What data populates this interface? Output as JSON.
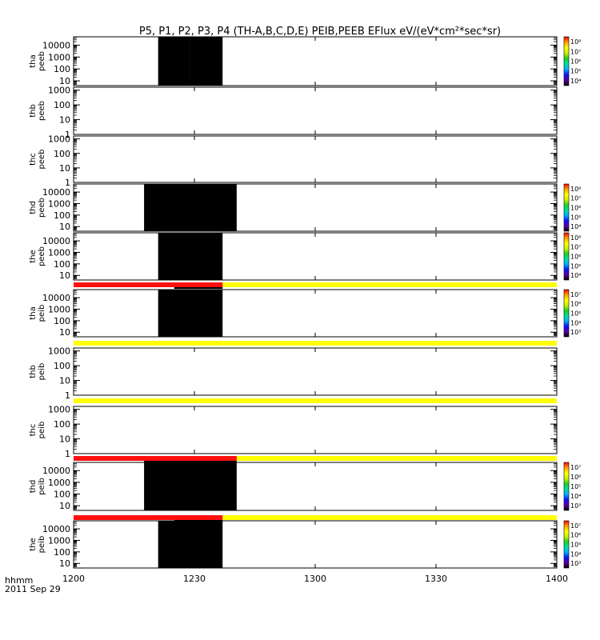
{
  "title": "P5, P1, P2, P3, P4 (TH-A,B,C,D,E) PEIB,PEEB EFlux eV/(eV*cm²*sec*sr)",
  "time_axis": {
    "label_line1": "hhmm",
    "label_line2": "2011 Sep 29",
    "ticks": [
      "1200",
      "1230",
      "1300",
      "1330",
      "1400"
    ]
  },
  "chart_data": {
    "type": "heatmap",
    "title": "P5, P1, P2, P3, P4 (TH-A,B,C,D,E) PEIB,PEEB EFlux eV/(eV*cm²*sec*sr)",
    "x_axis": {
      "unit": "hhmm",
      "date": "2011 Sep 29",
      "range_minutes": [
        0,
        120
      ],
      "tick_labels": [
        "1200",
        "1230",
        "1300",
        "1330",
        "1400"
      ]
    },
    "panels": [
      {
        "probe": "tha",
        "product": "peeb",
        "yticks": [
          "10",
          "100",
          "1000",
          "10000"
        ],
        "yrange_log": [
          0.6,
          4.7
        ],
        "colorbar": [
          "10⁴",
          "10⁵",
          "10⁶",
          "10⁷",
          "10⁸"
        ],
        "data_minutes": [
          [
            21,
            29
          ],
          [
            29,
            37
          ]
        ],
        "fill": [
          [
            "#6ee34a",
            "#9ee03a"
          ],
          [
            "#4bd12e",
            "#7cdd35"
          ]
        ]
      },
      {
        "probe": "thb",
        "product": "peeb",
        "yticks": [
          "1",
          "10",
          "100",
          "1000"
        ],
        "yrange_log": [
          0,
          3.2
        ]
      },
      {
        "probe": "thc",
        "product": "peeb",
        "yticks": [
          "1",
          "10",
          "100",
          "1000"
        ],
        "yrange_log": [
          0,
          3.2
        ]
      },
      {
        "probe": "thd",
        "product": "peeb",
        "yticks": [
          "10",
          "100",
          "1000",
          "10000"
        ],
        "yrange_log": [
          0.6,
          4.7
        ],
        "colorbar": [
          "10⁴",
          "10⁵",
          "10⁶",
          "10⁷",
          "10⁸"
        ],
        "data_minutes": [
          [
            17.5,
            40.5
          ]
        ],
        "fill": [
          [
            "#ffe838",
            "#d9ed2a"
          ],
          [
            "#ffd92e",
            "#47e625"
          ]
        ]
      },
      {
        "probe": "the",
        "product": "peeb",
        "yticks": [
          "10",
          "100",
          "1000",
          "10000"
        ],
        "yrange_log": [
          0.6,
          4.7
        ],
        "colorbar": [
          "10⁴",
          "10⁵",
          "10⁶",
          "10⁷",
          "10⁸"
        ],
        "data_minutes": [
          [
            21,
            37
          ]
        ],
        "fill": [
          [
            "#fbc72a",
            "#f7b82c"
          ],
          [
            "#f8b728",
            "#f6ad2c"
          ]
        ]
      },
      {
        "probe": "tha",
        "product": "peib",
        "yticks": [
          "10",
          "100",
          "1000",
          "10000"
        ],
        "yrange_log": [
          0.6,
          4.7
        ],
        "colorbar": [
          "10³",
          "10⁴",
          "10⁵",
          "10⁶",
          "10⁷"
        ],
        "data_minutes": [
          [
            21,
            37
          ]
        ],
        "fill": [
          [
            "#ffd520",
            "#f8a020"
          ],
          [
            "#ffe032",
            "#f39422"
          ]
        ],
        "flag_bar": {
          "red_minutes": [
            0,
            37
          ],
          "black_minutes": [
            25,
            37
          ]
        }
      },
      {
        "probe": "thb",
        "product": "peib",
        "yticks": [
          "1",
          "10",
          "100",
          "1000"
        ],
        "yrange_log": [
          0,
          3.2
        ],
        "flag_bar": {
          "red_minutes": null,
          "black_minutes": null
        }
      },
      {
        "probe": "thc",
        "product": "peib",
        "yticks": [
          "1",
          "10",
          "100",
          "1000"
        ],
        "yrange_log": [
          0,
          3.2
        ],
        "flag_bar": {
          "red_minutes": null,
          "black_minutes": null
        }
      },
      {
        "probe": "thd",
        "product": "peib",
        "yticks": [
          "10",
          "100",
          "1000",
          "10000"
        ],
        "yrange_log": [
          0.6,
          4.7
        ],
        "colorbar": [
          "10³",
          "10⁴",
          "10⁵",
          "10⁶",
          "10⁷"
        ],
        "data_minutes": [
          [
            17.5,
            40.5
          ]
        ],
        "fill": [
          [
            "#ff2a10",
            "#f8a020"
          ],
          [
            "#ff3012",
            "#ffb020"
          ]
        ],
        "flag_bar": {
          "red_minutes": [
            0,
            40.5
          ],
          "black_minutes": [
            17.5,
            40.5
          ]
        }
      },
      {
        "probe": "the",
        "product": "peib",
        "yticks": [
          "10",
          "100",
          "1000",
          "10000"
        ],
        "yrange_log": [
          0.6,
          4.7
        ],
        "colorbar": [
          "10³",
          "10⁴",
          "10⁵",
          "10⁶",
          "10⁷"
        ],
        "data_minutes": [
          [
            21,
            37
          ]
        ],
        "fill": [
          [
            "#ff2410",
            "#ff2a10"
          ],
          [
            "#ff1e0c",
            "#ff2810"
          ]
        ],
        "flag_bar": {
          "red_minutes": [
            0,
            37
          ],
          "black_minutes": [
            25,
            37
          ]
        }
      }
    ]
  }
}
